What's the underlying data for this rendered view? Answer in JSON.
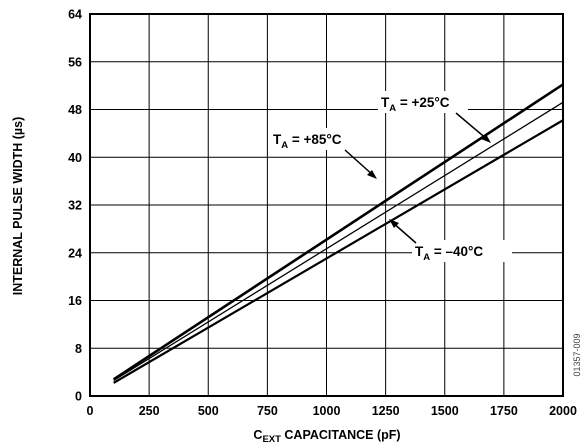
{
  "chart_data": {
    "type": "line",
    "xlabel": {
      "prefix": "C",
      "sub": "EXT",
      "rest": " CAPACITANCE (pF)"
    },
    "ylabel": "INTERNAL PULSE WIDTH (µs)",
    "xlim": [
      0,
      2000
    ],
    "ylim": [
      0,
      64
    ],
    "x_ticks": [
      0,
      250,
      500,
      750,
      1000,
      1250,
      1500,
      1750,
      2000
    ],
    "y_ticks": [
      0,
      8,
      16,
      24,
      32,
      40,
      48,
      56,
      64
    ],
    "grid": true,
    "figure_id": "01357-009",
    "series": [
      {
        "label_prefix": "T",
        "label_sub": "A",
        "label_rest": " = +25°C",
        "x": [
          100,
          2000
        ],
        "y": [
          2.8,
          52.2
        ],
        "stroke": "#000000",
        "width": 2.6
      },
      {
        "label_prefix": "T",
        "label_sub": "A",
        "label_rest": " = +85°C",
        "x": [
          100,
          2000
        ],
        "y": [
          2.6,
          49.2
        ],
        "stroke": "#000000",
        "width": 1.3
      },
      {
        "label_prefix": "T",
        "label_sub": "A",
        "label_rest": " = –40°C",
        "x": [
          100,
          2000
        ],
        "y": [
          2.2,
          46.2
        ],
        "stroke": "#000000",
        "width": 2.2
      }
    ]
  }
}
